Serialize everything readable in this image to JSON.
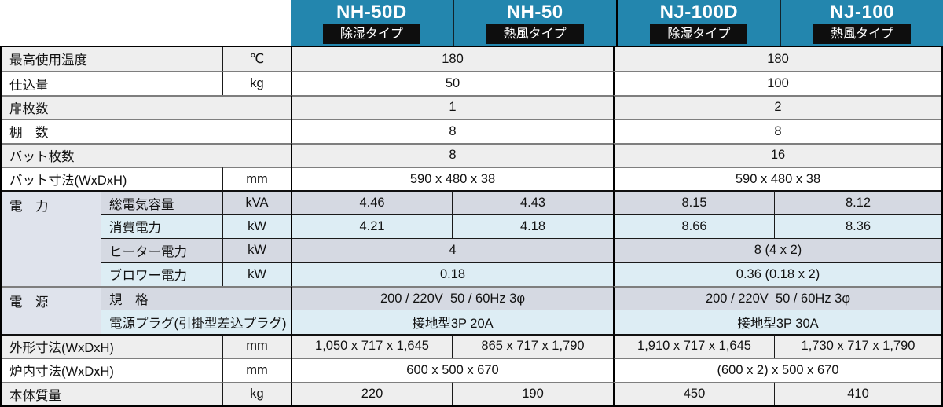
{
  "colors": {
    "header_blue": "#2386ae",
    "badge_black": "#0e0e0e",
    "row_gray": "#eeeeee",
    "power_gray": "#d5d9e2",
    "power_blue": "#ddedf4",
    "group_cell": "#dfe3ec"
  },
  "header": {
    "models": [
      {
        "name": "NH-50D",
        "type_label": "除湿タイプ"
      },
      {
        "name": "NH-50",
        "type_label": "熱風タイプ"
      },
      {
        "name": "NJ-100D",
        "type_label": "除湿タイプ"
      },
      {
        "name": "NJ-100",
        "type_label": "熱風タイプ"
      }
    ]
  },
  "table": {
    "rows": {
      "max_temp": {
        "label": "最高使用温度",
        "unit": "℃",
        "values": [
          "180",
          "180"
        ]
      },
      "capacity": {
        "label": "仕込量",
        "unit": "kg",
        "values": [
          "50",
          "100"
        ]
      },
      "doors": {
        "label": "扉枚数",
        "values": [
          "1",
          "2"
        ]
      },
      "shelves": {
        "label": "棚　数",
        "values": [
          "8",
          "8"
        ]
      },
      "trays": {
        "label": "バット枚数",
        "values": [
          "8",
          "16"
        ]
      },
      "tray_size": {
        "label": "バット寸法(WxDxH)",
        "unit": "mm",
        "values": [
          "590 x 480 x 38",
          "590 x 480 x 38"
        ]
      },
      "power": {
        "group_label": "電　力",
        "total_capacity": {
          "label": "総電気容量",
          "unit": "kVA",
          "values": [
            "4.46",
            "4.43",
            "8.15",
            "8.12"
          ]
        },
        "consumption": {
          "label": "消費電力",
          "unit": "kW",
          "values": [
            "4.21",
            "4.18",
            "8.66",
            "8.36"
          ]
        },
        "heater": {
          "label": "ヒーター電力",
          "unit": "kW",
          "values": [
            "4",
            "8 (4 x 2)"
          ]
        },
        "blower": {
          "label": "ブロワー電力",
          "unit": "kW",
          "values": [
            "0.18",
            "0.36 (0.18 x 2)"
          ]
        }
      },
      "source": {
        "group_label": "電　源",
        "spec": {
          "label": "規　格",
          "values": [
            "200 / 220V  50 / 60Hz 3φ",
            "200 / 220V  50 / 60Hz 3φ"
          ]
        },
        "plug": {
          "label": "電源プラグ(引掛型差込プラグ)",
          "values": [
            "接地型3P 20A",
            "接地型3P 30A"
          ]
        }
      },
      "outer_size": {
        "label": "外形寸法(WxDxH)",
        "unit": "mm",
        "values": [
          "1,050 x 717 x 1,645",
          "865 x 717 x 1,790",
          "1,910 x 717 x 1,645",
          "1,730 x 717 x 1,790"
        ]
      },
      "inner_size": {
        "label": "炉内寸法(WxDxH)",
        "unit": "mm",
        "values": [
          "600 x 500 x 670",
          "(600 x 2) x 500 x 670"
        ]
      },
      "weight": {
        "label": "本体質量",
        "unit": "kg",
        "values": [
          "220",
          "190",
          "450",
          "410"
        ]
      }
    }
  }
}
